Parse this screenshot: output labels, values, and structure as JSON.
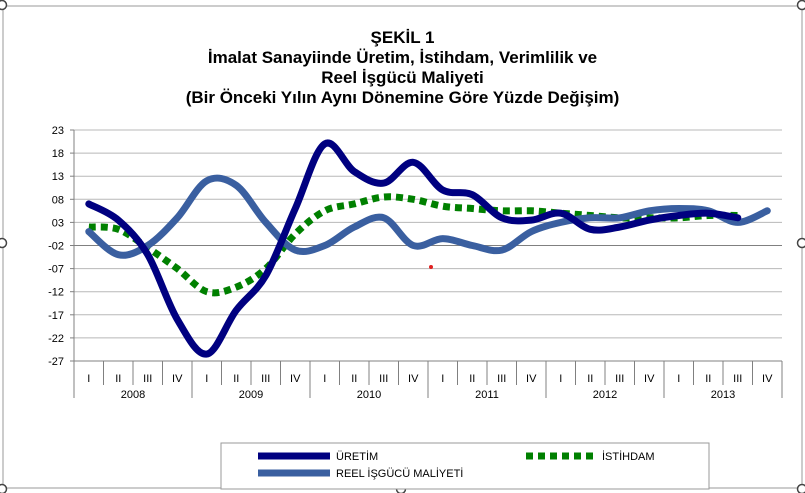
{
  "chart_data": {
    "type": "line",
    "title": [
      "ŞEKİL 1",
      "İmalat Sanayiinde Üretim, İstihdam, Verimlilik ve",
      "Reel İşgücü Maliyeti",
      "(Bir Önceki Yılın Aynı Dönemine Göre Yüzde Değişim)"
    ],
    "quarters": [
      "I",
      "II",
      "III",
      "IV",
      "I",
      "II",
      "III",
      "IV",
      "I",
      "II",
      "III",
      "IV",
      "I",
      "II",
      "III",
      "IV",
      "I",
      "II",
      "III",
      "IV",
      "I",
      "II",
      "III",
      "IV"
    ],
    "years": [
      "2008",
      "2009",
      "2010",
      "2011",
      "2012",
      "2013"
    ],
    "yticks": [
      "23",
      "18",
      "13",
      "08",
      "03",
      "-02",
      "-07",
      "-12",
      "-17",
      "-22",
      "-27"
    ],
    "ylim": [
      -27,
      23
    ],
    "grid": true,
    "legend_position": "bottom",
    "series": [
      {
        "name": "ÜRETİM",
        "color": "#000080",
        "style": "solid",
        "values": [
          7,
          3.5,
          -4,
          -18,
          -25.5,
          -16,
          -8.5,
          6,
          20,
          14,
          11.5,
          16,
          10,
          9,
          4,
          3.5,
          5,
          1.5,
          2,
          3.5,
          4.5,
          5,
          4,
          null
        ]
      },
      {
        "name": "İSTİHDAM",
        "color": "#008000",
        "style": "dotted",
        "values": [
          2,
          1.5,
          -2.5,
          -7,
          -12,
          -11,
          -7,
          0.5,
          5.5,
          7,
          8.5,
          8,
          6.5,
          6,
          5.5,
          5.5,
          5,
          4.5,
          4,
          4,
          4,
          4.5,
          4.5,
          null
        ]
      },
      {
        "name": "REEL İŞGÜCÜ MALİYETİ",
        "color": "#3a5fa0",
        "style": "solid",
        "values": [
          1,
          -4,
          -2,
          4,
          12,
          11,
          3,
          -3,
          -2,
          2,
          4,
          -2,
          -0.5,
          -2,
          -3,
          1,
          3,
          4,
          4,
          5.5,
          6,
          5.5,
          3,
          5.5
        ]
      }
    ],
    "annotations": []
  }
}
